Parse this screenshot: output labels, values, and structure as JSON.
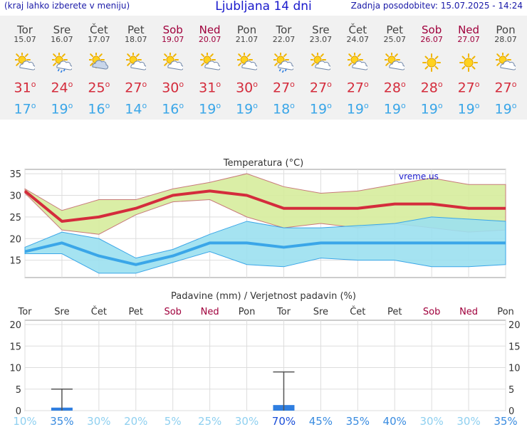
{
  "header": {
    "hint": "(kraj lahko izberete v meniju)",
    "title": "Ljubljana 14 dni",
    "updated": "Zadnja posodobitev: 15.07.2025 - 14:24"
  },
  "colors": {
    "max_temp": "#d42c3c",
    "min_temp": "#3aa6e8",
    "weekend": "#a0003c",
    "precip_bar": "#2f7ee0"
  },
  "days": [
    {
      "name": "Tor",
      "date": "15.07",
      "icon": "sun-cloud-icon",
      "max": "31",
      "min": "17",
      "weekend": false
    },
    {
      "name": "Sre",
      "date": "16.07",
      "icon": "sun-cloud-rain-icon",
      "max": "24",
      "min": "19",
      "weekend": false
    },
    {
      "name": "Čet",
      "date": "17.07",
      "icon": "cloudy-sun-icon",
      "max": "25",
      "min": "16",
      "weekend": false
    },
    {
      "name": "Pet",
      "date": "18.07",
      "icon": "sun-cloud-icon",
      "max": "27",
      "min": "14",
      "weekend": false
    },
    {
      "name": "Sob",
      "date": "19.07",
      "icon": "sun-cloud-icon",
      "max": "30",
      "min": "16",
      "weekend": true
    },
    {
      "name": "Ned",
      "date": "20.07",
      "icon": "sun-cloud-icon",
      "max": "31",
      "min": "19",
      "weekend": true
    },
    {
      "name": "Pon",
      "date": "21.07",
      "icon": "sun-cloud-icon",
      "max": "30",
      "min": "19",
      "weekend": false
    },
    {
      "name": "Tor",
      "date": "22.07",
      "icon": "sun-cloud-rain-icon",
      "max": "27",
      "min": "18",
      "weekend": false
    },
    {
      "name": "Sre",
      "date": "23.07",
      "icon": "sun-cloud-icon",
      "max": "27",
      "min": "19",
      "weekend": false
    },
    {
      "name": "Čet",
      "date": "24.07",
      "icon": "sun-cloud-icon",
      "max": "27",
      "min": "19",
      "weekend": false
    },
    {
      "name": "Pet",
      "date": "25.07",
      "icon": "sun-cloud-icon",
      "max": "28",
      "min": "19",
      "weekend": false
    },
    {
      "name": "Sob",
      "date": "26.07",
      "icon": "sun-icon",
      "max": "28",
      "min": "19",
      "weekend": true
    },
    {
      "name": "Ned",
      "date": "27.07",
      "icon": "sun-icon",
      "max": "27",
      "min": "19",
      "weekend": true
    },
    {
      "name": "Pon",
      "date": "28.07",
      "icon": "sun-cloud-icon",
      "max": "27",
      "min": "19",
      "weekend": false
    }
  ],
  "chart_data": [
    {
      "type": "line",
      "title": "Temperatura (°C)",
      "watermark": "vreme.us",
      "ylim": [
        11,
        36
      ],
      "yticks": [
        15,
        20,
        25,
        30,
        35
      ],
      "series": [
        {
          "name": "max",
          "values": [
            31,
            24,
            25,
            27,
            30,
            31,
            30,
            27,
            27,
            27,
            28,
            28,
            27,
            27
          ]
        },
        {
          "name": "min",
          "values": [
            17,
            19,
            16,
            14,
            16,
            19,
            19,
            18,
            19,
            19,
            19,
            19,
            19,
            19
          ]
        },
        {
          "name": "max_range_high",
          "values": [
            31.5,
            26.5,
            29,
            29,
            31.5,
            33,
            35,
            32,
            30.5,
            31,
            32.5,
            34,
            32.5,
            32.5
          ]
        },
        {
          "name": "max_range_low",
          "values": [
            30.5,
            22,
            21,
            25.5,
            28.5,
            29,
            25,
            22.5,
            23.5,
            22.5,
            23.5,
            22.5,
            21.5,
            22
          ]
        },
        {
          "name": "min_range_high",
          "values": [
            18,
            21.5,
            20,
            15.5,
            17.5,
            21,
            24,
            22.5,
            22.5,
            23,
            23.5,
            25,
            24.5,
            24
          ]
        },
        {
          "name": "min_range_low",
          "values": [
            16.5,
            16.5,
            12,
            12,
            14.5,
            17,
            14,
            13.5,
            15.5,
            15,
            15,
            13.5,
            13.5,
            14
          ]
        }
      ]
    },
    {
      "type": "bar",
      "title": "Padavine (mm) / Verjetnost padavin (%)",
      "categories": [
        "Tor",
        "Sre",
        "Čet",
        "Pet",
        "Sob",
        "Ned",
        "Pon",
        "Tor",
        "Sre",
        "Čet",
        "Pet",
        "Sob",
        "Ned",
        "Pon"
      ],
      "ylim": [
        0,
        21
      ],
      "yticks": [
        0,
        5,
        10,
        15,
        20
      ],
      "values": [
        0,
        0.7,
        0,
        0,
        0,
        0,
        0,
        1.3,
        0,
        0,
        0,
        0,
        0,
        0
      ],
      "error_high": [
        0,
        5,
        0,
        0,
        0,
        0,
        0,
        9,
        0,
        0,
        0,
        0,
        0,
        0
      ],
      "probability": [
        "10%",
        "35%",
        "30%",
        "20%",
        "5%",
        "25%",
        "30%",
        "70%",
        "45%",
        "35%",
        "40%",
        "30%",
        "30%",
        "35%"
      ],
      "probability_values": [
        10,
        35,
        30,
        20,
        5,
        25,
        30,
        70,
        45,
        35,
        40,
        30,
        30,
        35
      ]
    }
  ]
}
